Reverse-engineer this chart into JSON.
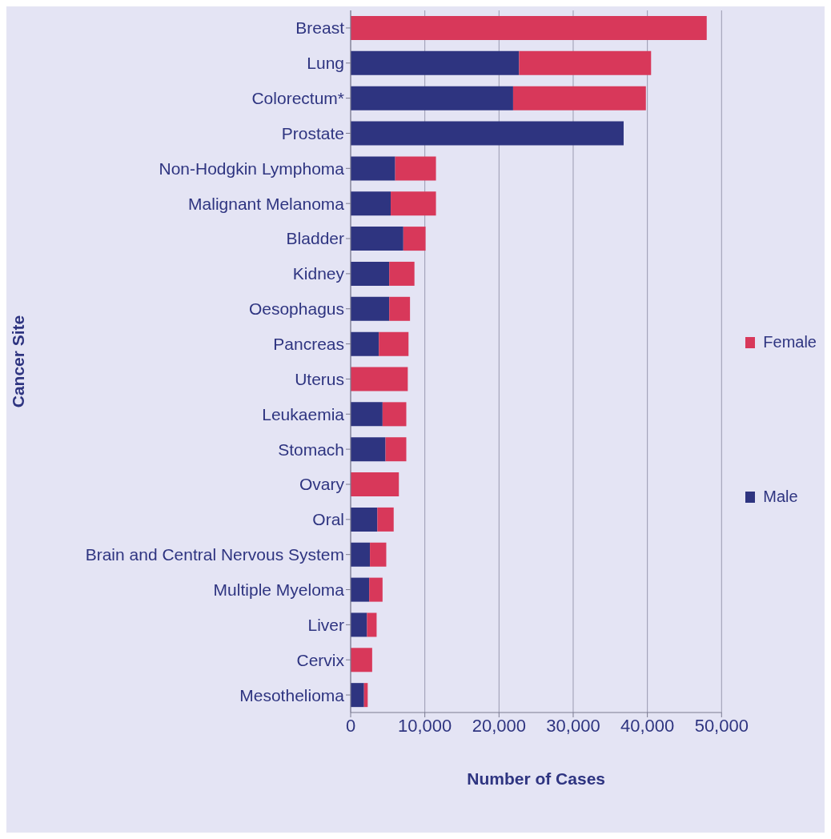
{
  "chart_data": {
    "type": "bar",
    "orientation": "horizontal",
    "stacked": true,
    "xlabel": "Number of Cases",
    "ylabel": "Cancer Site",
    "categories": [
      "Breast",
      "Lung",
      "Colorectum*",
      "Prostate",
      "Non-Hodgkin Lymphoma",
      "Malignant Melanoma",
      "Bladder",
      "Kidney",
      "Oesophagus",
      "Pancreas",
      "Uterus",
      "Leukaemia",
      "Stomach",
      "Ovary",
      "Oral",
      "Brain and Central Nervous System",
      "Multiple Myeloma",
      "Liver",
      "Cervix",
      "Mesothelioma"
    ],
    "series": [
      {
        "name": "Male",
        "color": "#2e3480",
        "values": [
          0,
          22700,
          21900,
          36800,
          6000,
          5400,
          7100,
          5200,
          5200,
          3800,
          0,
          4300,
          4700,
          0,
          3600,
          2600,
          2500,
          2200,
          0,
          1800
        ]
      },
      {
        "name": "Female",
        "color": "#d8385a",
        "values": [
          48000,
          17800,
          17900,
          0,
          5500,
          6100,
          3000,
          3400,
          2800,
          4000,
          7700,
          3200,
          2800,
          6500,
          2200,
          2200,
          1800,
          1300,
          2900,
          500
        ]
      }
    ],
    "xlim": [
      0,
      50000
    ],
    "xticks": [
      0,
      {
        "value": 10000,
        "label": "10,000"
      },
      {
        "value": 20000,
        "label": "20,000"
      },
      {
        "value": 30000,
        "label": "30,000"
      },
      {
        "value": 40000,
        "label": "40,000"
      },
      {
        "value": 50000,
        "label": "50,000"
      }
    ],
    "grid": "x",
    "legend": "right"
  }
}
